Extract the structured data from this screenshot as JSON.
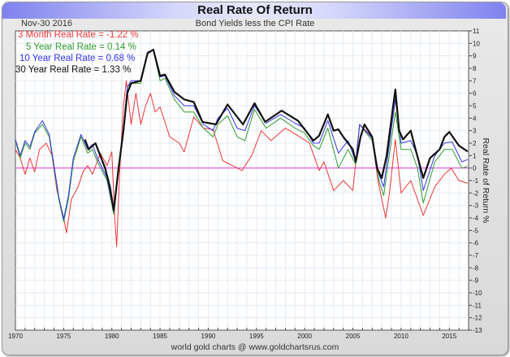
{
  "chart_data": {
    "type": "line",
    "title": "Real Rate Of Return",
    "subtitle": "Bond Yields less the CPI Rate",
    "date": "Nov-30  2016",
    "ylabel": "Real Rate of Return %",
    "xlabel": "",
    "footer": "world gold charts @ www.goldchartsrus.com",
    "xlim": [
      1970,
      2017
    ],
    "ylim": [
      -13,
      11
    ],
    "xticks": [
      "1970",
      "1975",
      "1980",
      "1985",
      "1990",
      "1995",
      "2000",
      "2005",
      "2010",
      "2015"
    ],
    "yticks": [
      "11",
      "10",
      "9",
      "8",
      "7",
      "6",
      "5",
      "4",
      "3",
      "2",
      "1",
      "0",
      "-1",
      "-2",
      "-3",
      "-4",
      "-5",
      "-6",
      "-7",
      "-8",
      "-9",
      "-10",
      "-11",
      "-12",
      "-13"
    ],
    "grid": true,
    "reference_line": {
      "y": 0,
      "color": "#e040d8"
    },
    "legend_position": "top-left",
    "series": [
      {
        "name": "3 Month Real Rate",
        "legend": "3 Month Real Rate = -1.22 %",
        "color": "#ee3535",
        "x": [
          1970,
          1970.5,
          1971,
          1971.5,
          1972,
          1972.5,
          1973.2,
          1973.8,
          1974.3,
          1975,
          1975.3,
          1975.8,
          1976.5,
          1977,
          1977.5,
          1978,
          1978.8,
          1979.5,
          1980,
          1980.3,
          1980.5,
          1980.8,
          1981.2,
          1981.5,
          1982,
          1982.5,
          1983,
          1983.5,
          1984,
          1984.5,
          1985,
          1986,
          1987,
          1987.5,
          1988.5,
          1989.5,
          1990.5,
          1991.5,
          1993.5,
          1994.5,
          1995.5,
          1996.5,
          1998,
          1999.5,
          2000.5,
          2001.5,
          2002,
          2003,
          2004,
          2005,
          2005.7,
          2007,
          2007.6,
          2008.4,
          2008.8,
          2009.4,
          2010,
          2011,
          2012.3,
          2013.5,
          2014.5,
          2015.2,
          2016,
          2016.9
        ],
        "y": [
          1.5,
          0.8,
          -0.5,
          0.8,
          -0.3,
          1.5,
          2.0,
          1.0,
          -1.8,
          -4.0,
          -5.2,
          -2.5,
          -1.5,
          -0.3,
          0.2,
          -0.5,
          1.2,
          0.2,
          1.3,
          -4.0,
          -6.3,
          -0.5,
          5.0,
          7.0,
          3.5,
          6.0,
          3.5,
          5.0,
          6.0,
          4.5,
          4.9,
          2.5,
          2.0,
          1.3,
          4.1,
          3.2,
          3.1,
          0.6,
          -0.2,
          1.0,
          3.0,
          2.2,
          3.2,
          2.5,
          2.0,
          -0.2,
          0.5,
          -1.8,
          -1.0,
          -1.8,
          3.5,
          2.5,
          -1.0,
          -4.0,
          -2.0,
          2.3,
          -2.0,
          -1.0,
          -3.8,
          -1.5,
          -0.5,
          0.0,
          -1.0,
          -1.22
        ]
      },
      {
        "name": "5 Year Real Rate",
        "legend": "5 Year Real Rate = 0.14 %",
        "color": "#2e9a2e",
        "x": [
          1970,
          1970.5,
          1971,
          1971.5,
          1972,
          1972.8,
          1973.5,
          1974,
          1974.5,
          1975,
          1975.5,
          1976,
          1976.8,
          1977.5,
          1978,
          1978.5,
          1979.5,
          1980.2,
          1980.7,
          1981.2,
          1981.6,
          1982,
          1983,
          1983.7,
          1984.3,
          1985,
          1985.5,
          1986.5,
          1987.5,
          1988.5,
          1989.5,
          1990.5,
          1991,
          1992,
          1993,
          1993.8,
          1994.8,
          1996,
          1997.5,
          1999,
          2000,
          2000.9,
          2001.5,
          2002.4,
          2003.5,
          2004.5,
          2005.3,
          2005.7,
          2007,
          2007.7,
          2008.2,
          2009.4,
          2010,
          2011,
          2011.7,
          2012.3,
          2013.5,
          2014.5,
          2015.3,
          2016.3,
          2016.9
        ],
        "y": [
          2.2,
          0.8,
          2.0,
          1.5,
          2.8,
          3.5,
          2.5,
          0,
          -2.5,
          -4.3,
          -2.5,
          0.5,
          2.5,
          1.2,
          1.5,
          0.5,
          -1.0,
          -3.7,
          0,
          3.0,
          6.5,
          6.8,
          6.8,
          9.2,
          9.5,
          7.0,
          7.2,
          5.5,
          4.5,
          4.5,
          3.2,
          2.5,
          3.5,
          4.2,
          2.5,
          2.2,
          4.7,
          3.2,
          4.0,
          3.2,
          2.8,
          1.8,
          1.5,
          3.2,
          0,
          1.5,
          0.3,
          3.5,
          2.2,
          -1.0,
          -2.2,
          4.5,
          1.5,
          1.5,
          0,
          -2.8,
          0.5,
          1.5,
          1.5,
          0,
          0.14
        ]
      },
      {
        "name": "10 Year Real Rate",
        "legend": "10 Year Real Rate = 0.68 %",
        "color": "#3535e8",
        "x": [
          1970,
          1970.5,
          1971,
          1971.5,
          1972,
          1972.8,
          1973.5,
          1974,
          1974.5,
          1975,
          1975.5,
          1976,
          1976.8,
          1977.5,
          1978,
          1978.5,
          1979.5,
          1980.2,
          1980.7,
          1981.2,
          1981.6,
          1982,
          1983,
          1983.7,
          1984.3,
          1985,
          1985.5,
          1986.5,
          1987.5,
          1988.5,
          1989.5,
          1990.5,
          1991,
          1992,
          1993,
          1993.8,
          1994.8,
          1996,
          1997.5,
          1999,
          2000,
          2000.9,
          2001.5,
          2002.4,
          2003.5,
          2004.5,
          2005.3,
          2005.7,
          2007,
          2007.7,
          2008.2,
          2009.4,
          2010,
          2011,
          2011.7,
          2012.3,
          2013.5,
          2014.5,
          2015.3,
          2016.3,
          2016.9
        ],
        "y": [
          2.3,
          1.0,
          2.2,
          1.7,
          2.9,
          3.8,
          2.7,
          0.2,
          -2.3,
          -4.1,
          -2.2,
          0.8,
          2.7,
          1.5,
          1.9,
          0.8,
          -0.8,
          -3.5,
          0.2,
          3.2,
          6.5,
          7.0,
          7.0,
          9.3,
          9.5,
          7.3,
          7.4,
          5.8,
          5.0,
          5.0,
          3.5,
          3.0,
          4.0,
          4.8,
          3.2,
          3.0,
          5.0,
          3.6,
          4.3,
          3.6,
          3.2,
          2.0,
          2.0,
          3.8,
          1.2,
          2.2,
          0.5,
          3.5,
          2.4,
          -0.5,
          -1.5,
          5.5,
          2.0,
          2.2,
          1.0,
          -1.8,
          1.0,
          2.0,
          2.1,
          0.5,
          0.68
        ]
      },
      {
        "name": "30 Year Real Rate",
        "legend": "30 Year Real Rate = 1.33 %",
        "color": "#111111",
        "x": [
          1977.2,
          1977.6,
          1978.3,
          1978.7,
          1979.3,
          1979.8,
          1980.2,
          1980.7,
          1981.2,
          1981.6,
          1982,
          1983,
          1983.7,
          1984.3,
          1985,
          1985.5,
          1986.5,
          1987.5,
          1988.5,
          1989.4,
          1990.8,
          1992,
          1993.6,
          1994.8,
          1995.9,
          1997.6,
          1999.3,
          2000.9,
          2001.5,
          2002.4,
          2003,
          2003.5,
          2004,
          2005,
          2005.3,
          2005.8,
          2006.2,
          2007,
          2007.5,
          2008,
          2008.5,
          2009.4,
          2009.8,
          2010.2,
          2011,
          2011.5,
          2012.3,
          2013,
          2014,
          2014.5,
          2015,
          2016,
          2016.9
        ],
        "y": [
          2.3,
          1.5,
          2.0,
          1.2,
          0,
          -1.5,
          -3.4,
          0,
          3.0,
          6.0,
          6.8,
          7.0,
          9.2,
          9.5,
          7.4,
          7.5,
          6.1,
          5.5,
          5.3,
          3.7,
          3.5,
          5.1,
          3.5,
          5.2,
          3.7,
          4.6,
          3.8,
          2.2,
          2.6,
          4.3,
          3.0,
          3.1,
          2.5,
          1.5,
          0.5,
          2.5,
          3.5,
          2.5,
          0,
          -0.8,
          1.0,
          6.3,
          3.0,
          2.3,
          3.0,
          1.5,
          -0.8,
          0.8,
          1.5,
          2.5,
          2.9,
          1.8,
          1.33
        ]
      }
    ]
  }
}
